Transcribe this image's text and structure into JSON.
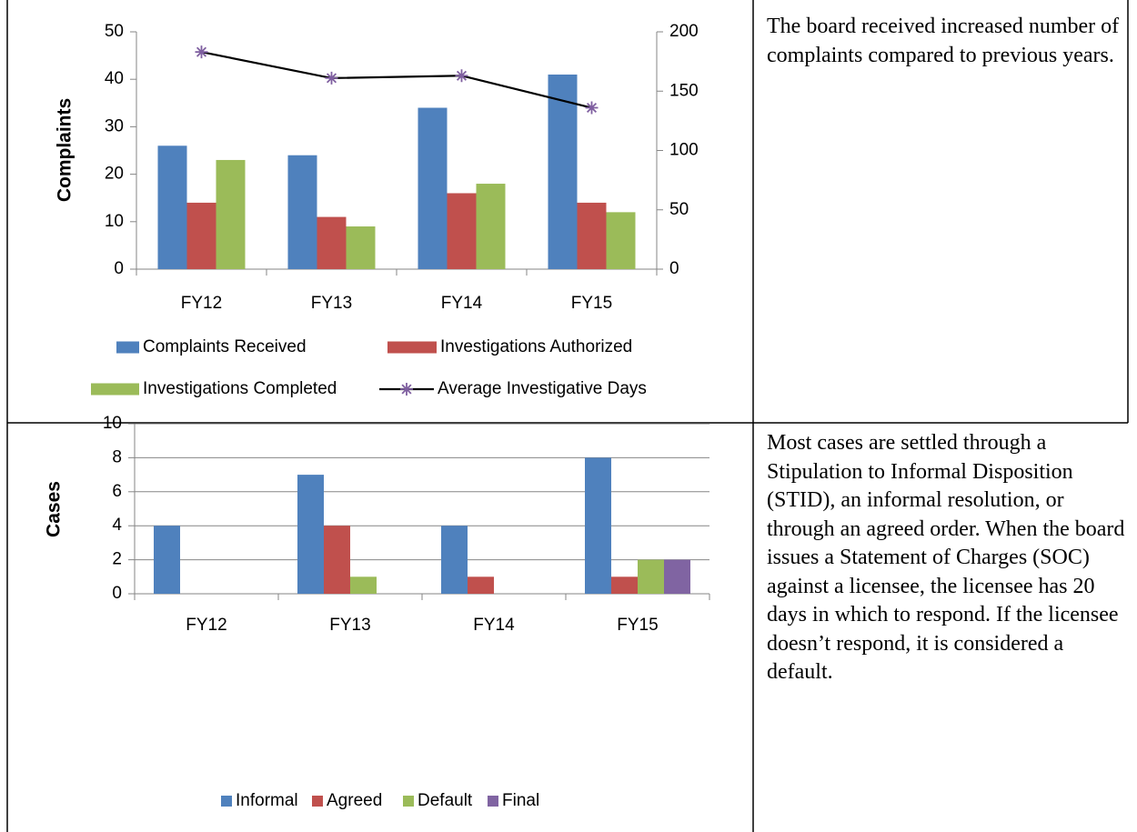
{
  "chart_data": [
    {
      "type": "bar",
      "ylabel": "Complaints",
      "categories": [
        "FY12",
        "FY13",
        "FY14",
        "FY15"
      ],
      "series": [
        {
          "name": "Complaints Received",
          "color": "#4f81bd",
          "values": [
            26,
            24,
            34,
            41
          ]
        },
        {
          "name": "Investigations Authorized",
          "color": "#c0504d",
          "values": [
            14,
            11,
            16,
            14
          ]
        },
        {
          "name": "Investigations Completed",
          "color": "#9bbb59",
          "values": [
            23,
            9,
            18,
            12
          ]
        },
        {
          "name": "Average Investigative Days",
          "type": "line",
          "axis": "y2",
          "color": "#000000",
          "marker_color": "#7f5fa0",
          "values": [
            183,
            161,
            163,
            136
          ]
        }
      ],
      "ylim": [
        0,
        50
      ],
      "yticks": [
        0,
        10,
        20,
        30,
        40,
        50
      ],
      "y2lim": [
        0,
        200
      ],
      "y2ticks": [
        0,
        50,
        100,
        150,
        200
      ],
      "grid": false
    },
    {
      "type": "bar",
      "ylabel": "Cases",
      "categories": [
        "FY12",
        "FY13",
        "FY14",
        "FY15"
      ],
      "series": [
        {
          "name": "Informal",
          "color": "#4f81bd",
          "values": [
            4,
            7,
            4,
            8
          ]
        },
        {
          "name": "Agreed",
          "color": "#c0504d",
          "values": [
            0,
            4,
            1,
            1
          ]
        },
        {
          "name": "Default",
          "color": "#9bbb59",
          "values": [
            0,
            1,
            0,
            2
          ]
        },
        {
          "name": "Final",
          "color": "#8064a2",
          "values": [
            0,
            0,
            0,
            2
          ]
        }
      ],
      "ylim": [
        0,
        10
      ],
      "yticks": [
        0,
        2,
        4,
        6,
        8,
        10
      ],
      "grid": true
    }
  ],
  "text_cells": [
    "The board received increased number of complaints compared to previous years.",
    "Most cases are settled through a Stipulation to Informal Disposition (STID), an informal resolution, or through an agreed order. When the board issues a Statement of Charges (SOC) against a licensee, the licensee has 20 days in which to respond. If the licensee doesn’t respond, it is considered a default."
  ]
}
